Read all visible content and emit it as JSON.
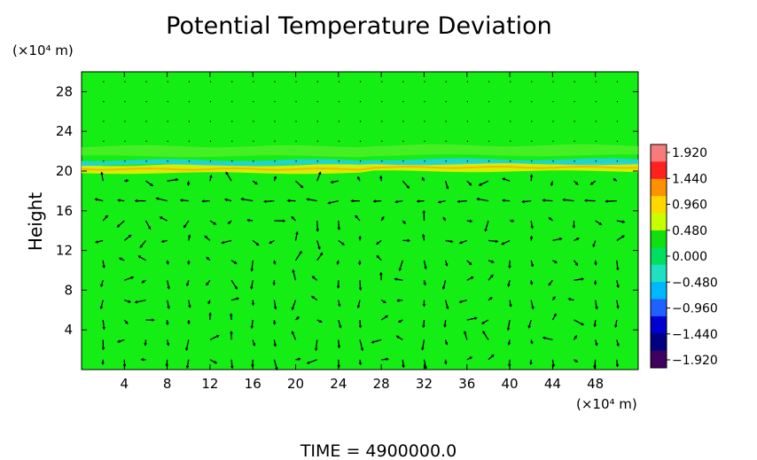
{
  "title": "Potential Temperature Deviation",
  "time_label": "TIME  =  4900000.0",
  "chart_data": {
    "type": "heatmap",
    "title": "Potential Temperature Deviation",
    "ylabel": "Height",
    "y_unit": "(×10⁴ m)",
    "x_unit": "(×10⁴ m)",
    "xlim": [
      0,
      52
    ],
    "ylim": [
      0,
      30
    ],
    "x_ticks": [
      4,
      8,
      12,
      16,
      20,
      24,
      28,
      32,
      36,
      40,
      44,
      48
    ],
    "y_ticks": [
      4,
      8,
      12,
      16,
      20,
      24,
      28
    ],
    "grid": false,
    "colorbar": {
      "placement": "right",
      "levels": [
        1.92,
        1.44,
        0.96,
        0.48,
        0.0,
        -0.48,
        -0.96,
        -1.44,
        -1.92
      ],
      "labels": [
        "1.920",
        "1.440",
        "0.960",
        "0.480",
        "0.000",
        "−0.480",
        "−0.960",
        "−1.440",
        "−1.920"
      ],
      "colors": [
        "#f77b7b",
        "#ff2020",
        "#ff9000",
        "#ffd800",
        "#c8ff00",
        "#10e010",
        "#00e060",
        "#20e0c0",
        "#00b8ff",
        "#2060ff",
        "#0000d0",
        "#000080",
        "#400060"
      ]
    },
    "field": {
      "background_value": 0.1,
      "features": [
        {
          "kind": "warm_band",
          "y_range": [
            19.8,
            20.6
          ],
          "max_value": 0.8
        },
        {
          "kind": "cool_band",
          "y_range": [
            20.6,
            21.1
          ],
          "min_value": -0.5
        },
        {
          "kind": "weak_layer",
          "y_range": [
            21.5,
            22.5
          ],
          "value": 0.3
        }
      ]
    },
    "vectors": {
      "description": "wind arrows on regular grid",
      "x_spacing": 2,
      "y_spacing": 2,
      "y_max": 20
    }
  }
}
